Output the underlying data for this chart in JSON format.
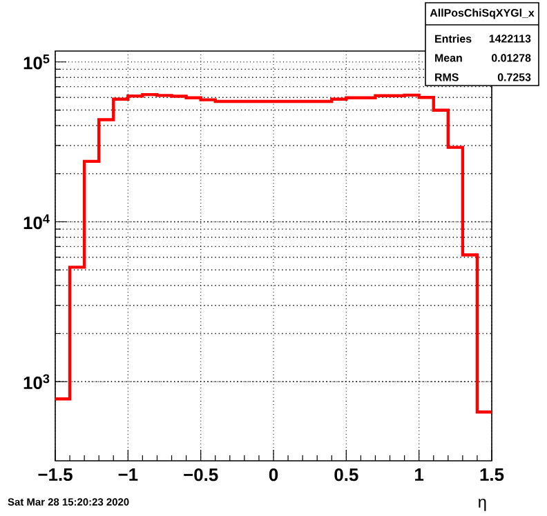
{
  "chart_data": {
    "type": "histogram",
    "xlabel": "η",
    "bins": [
      -1.5,
      -1.4,
      -1.3,
      -1.2,
      -1.1,
      -1.0,
      -0.9,
      -0.8,
      -0.7,
      -0.6,
      -0.5,
      -0.4,
      -0.3,
      -0.2,
      -0.1,
      0.0,
      0.1,
      0.2,
      0.3,
      0.4,
      0.5,
      0.6,
      0.7,
      0.8,
      0.9,
      1.0,
      1.1,
      1.2,
      1.3,
      1.4,
      1.5
    ],
    "values": [
      780,
      5200,
      23900,
      43500,
      58500,
      61200,
      62500,
      61700,
      61000,
      59700,
      58000,
      56600,
      56600,
      56600,
      56600,
      56600,
      56600,
      56600,
      56600,
      58500,
      59700,
      59700,
      61500,
      61500,
      62000,
      60000,
      49900,
      29200,
      6210,
      646
    ],
    "color": "#ff0000",
    "log": "y",
    "xlim": [
      -1.5,
      1.5
    ],
    "ylim": [
      320,
      117000
    ],
    "xticks": [
      {
        "value": -1.5,
        "label": "−1.5"
      },
      {
        "value": -1,
        "label": "−1"
      },
      {
        "value": -0.5,
        "label": "−0.5"
      },
      0,
      0.5,
      1,
      1.5
    ],
    "yticks": [
      {
        "value": 1000,
        "label": "10$^{3}$"
      },
      {
        "value": 10000,
        "label": "10$^{4}$"
      },
      {
        "value": 100000,
        "label": "10$^{5}$"
      }
    ],
    "grid": true,
    "annotations": [
      "AllPosChiSqXYGl_x",
      "Entries",
      "1422113",
      "Mean",
      "0.01278",
      "RMS",
      "0.7253",
      "Sat Mar 28 15:20:23 2020"
    ]
  }
}
